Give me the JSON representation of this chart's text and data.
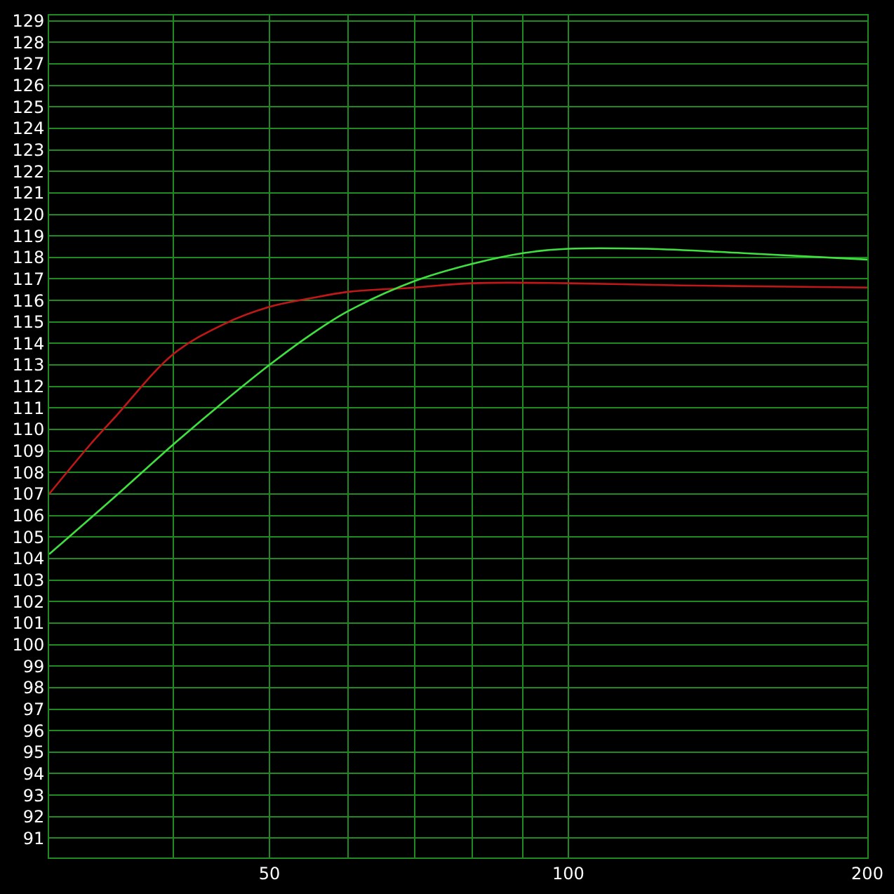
{
  "chart_data": {
    "type": "line",
    "log": "x",
    "grid": true,
    "legend": false,
    "marker": "none",
    "line_style": "solid",
    "xlim": [
      30,
      200
    ],
    "ylim": [
      90.1,
      129.25
    ],
    "xticks": [
      {
        "value": 40,
        "label": null
      },
      50,
      {
        "value": 60,
        "label": null
      },
      {
        "value": 70,
        "label": null
      },
      {
        "value": 80,
        "label": null
      },
      {
        "value": 90,
        "label": null
      },
      100,
      200
    ],
    "yticks": [
      91,
      92,
      93,
      94,
      95,
      96,
      97,
      98,
      99,
      100,
      101,
      102,
      103,
      104,
      105,
      106,
      107,
      108,
      109,
      110,
      111,
      112,
      113,
      114,
      115,
      116,
      117,
      118,
      119,
      120,
      121,
      122,
      123,
      124,
      125,
      126,
      127,
      128,
      129
    ],
    "series": [
      {
        "color": "#c01818",
        "x": [
          30,
          33,
          35,
          40,
          45,
          50,
          55,
          60,
          70,
          80,
          100,
          130,
          160,
          200
        ],
        "values": [
          107,
          109.3,
          110.6,
          113.5,
          114.9,
          115.7,
          116.1,
          116.4,
          116.6,
          116.8,
          116.8,
          116.7,
          116.65,
          116.6
        ]
      },
      {
        "color": "#40e040",
        "x": [
          30,
          35,
          40,
          45,
          50,
          55,
          60,
          70,
          80,
          90,
          100,
          120,
          150,
          200
        ],
        "values": [
          104.2,
          106.9,
          109.3,
          111.3,
          113,
          114.4,
          115.5,
          116.9,
          117.7,
          118.2,
          118.4,
          118.4,
          118.2,
          117.9
        ]
      }
    ]
  }
}
